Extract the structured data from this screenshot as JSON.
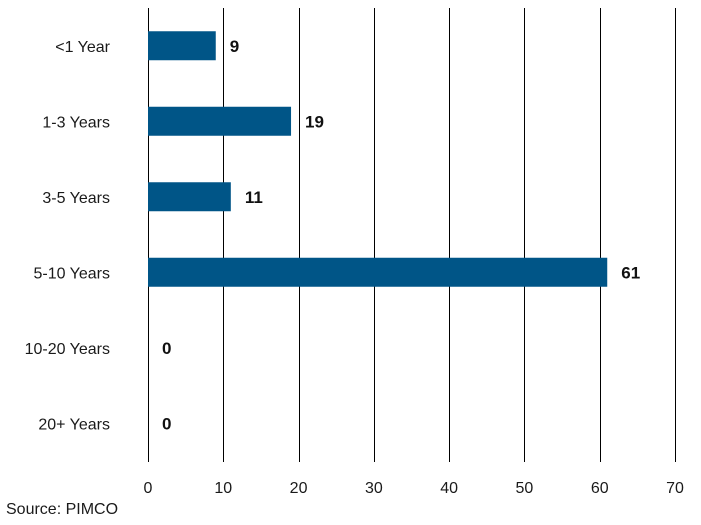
{
  "chart_data": {
    "type": "bar",
    "orientation": "horizontal",
    "categories": [
      "<1 Year",
      "1-3 Years",
      "3-5 Years",
      "5-10 Years",
      "10-20 Years",
      "20+ Years"
    ],
    "values": [
      9,
      19,
      11,
      61,
      0,
      0
    ],
    "data_labels": [
      "9",
      "19",
      "11",
      "61",
      "0",
      "0"
    ],
    "xlim": [
      0,
      70
    ],
    "x_ticks": [
      0,
      10,
      20,
      30,
      40,
      50,
      60,
      70
    ],
    "x_tick_labels": [
      "0",
      "10",
      "20",
      "30",
      "40",
      "50",
      "60",
      "70"
    ],
    "grid": "vertical",
    "bar_color": "#005587",
    "title": "",
    "xlabel": "",
    "ylabel": ""
  },
  "source": "Source: PIMCO"
}
